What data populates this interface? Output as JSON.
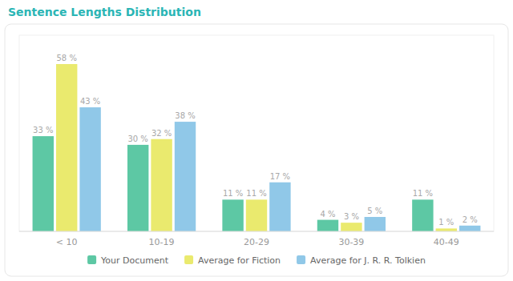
{
  "chart_data": {
    "type": "bar",
    "title": "Sentence Lengths Distribution",
    "categories": [
      "< 10",
      "10-19",
      "20-29",
      "30-39",
      "40-49"
    ],
    "series": [
      {
        "name": "Your Document",
        "color": "#5dc8a4",
        "values": [
          33,
          30,
          11,
          4,
          11
        ],
        "value_labels": [
          "33 %",
          "30 %",
          "11 %",
          "4 %",
          "11 %"
        ]
      },
      {
        "name": "Average for Fiction",
        "color": "#eaea6e",
        "values": [
          58,
          32,
          11,
          3,
          1
        ],
        "value_labels": [
          "58 %",
          "32 %",
          "11 %",
          "3 %",
          "1 %"
        ]
      },
      {
        "name": "Average for J. R. R. Tolkien",
        "color": "#90c8e8",
        "values": [
          43,
          38,
          17,
          5,
          2
        ],
        "value_labels": [
          "43 %",
          "38 %",
          "17 %",
          "5 %",
          "2 %"
        ]
      }
    ],
    "ylim": [
      0,
      68
    ],
    "grid": false,
    "legend": "bottom",
    "data_labels": true,
    "tick_labels": "x"
  }
}
